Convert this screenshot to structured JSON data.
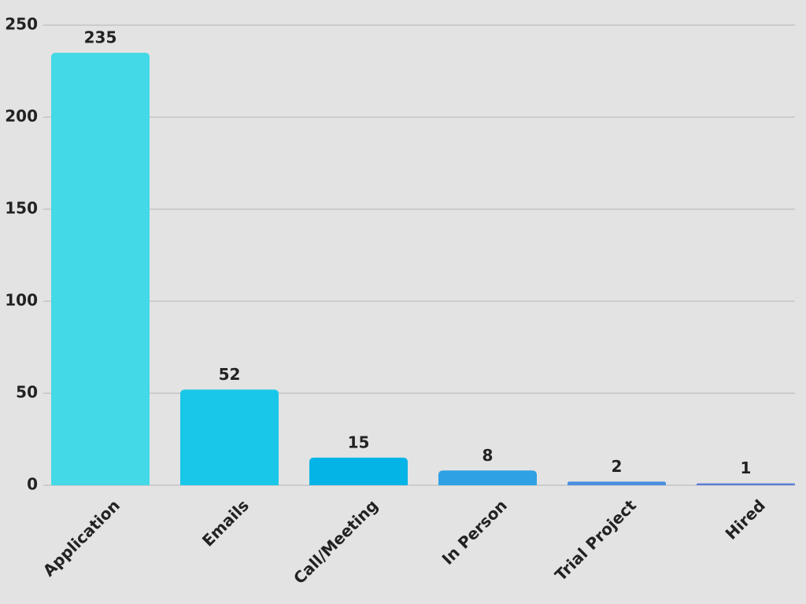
{
  "chart_data": {
    "type": "bar",
    "categories": [
      "Application",
      "Emails",
      "Call/Meeting",
      "In Person",
      "Trial Project",
      "Hired"
    ],
    "values": [
      235,
      52,
      15,
      8,
      2,
      1
    ],
    "colors": [
      "#43d9e6",
      "#19c8e8",
      "#05b4e6",
      "#2ea0e4",
      "#4b8ee0",
      "#5c7dd6"
    ],
    "ylim": [
      0,
      250
    ],
    "yticks": [
      0,
      50,
      100,
      150,
      200,
      250
    ],
    "grid": true
  }
}
